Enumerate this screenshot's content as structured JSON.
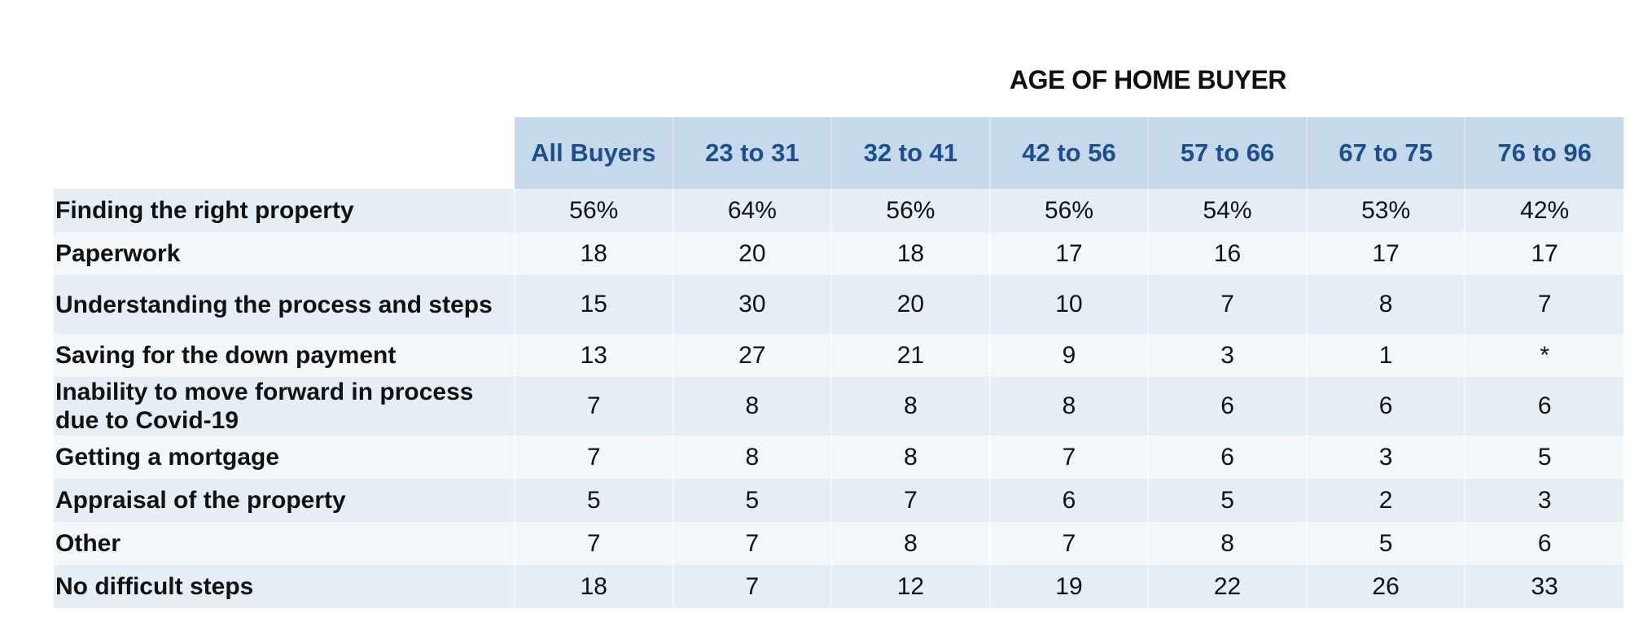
{
  "table": {
    "caption": "AGE OF HOME BUYER",
    "columns": [
      "All Buyers",
      "23 to 31",
      "32 to 41",
      "42 to 56",
      "57 to 66",
      "67 to 75",
      "76 to 96"
    ],
    "rows": [
      {
        "label": "Finding the right property",
        "values": [
          "56%",
          "64%",
          "56%",
          "56%",
          "54%",
          "53%",
          "42%"
        ]
      },
      {
        "label": "Paperwork",
        "values": [
          "18",
          "20",
          "18",
          "17",
          "16",
          "17",
          "17"
        ]
      },
      {
        "label": "Understanding the process and steps",
        "values": [
          "15",
          "30",
          "20",
          "10",
          "7",
          "8",
          "7"
        ]
      },
      {
        "label": "Saving for the down payment",
        "values": [
          "13",
          "27",
          "21",
          "9",
          "3",
          "1",
          "*"
        ]
      },
      {
        "label": "Inability to move forward in process due to Covid-19",
        "values": [
          "7",
          "8",
          "8",
          "8",
          "6",
          "6",
          "6"
        ]
      },
      {
        "label": "Getting a mortgage",
        "values": [
          "7",
          "8",
          "8",
          "7",
          "6",
          "3",
          "5"
        ]
      },
      {
        "label": "Appraisal of the property",
        "values": [
          "5",
          "5",
          "7",
          "6",
          "5",
          "2",
          "3"
        ]
      },
      {
        "label": "Other",
        "values": [
          "7",
          "7",
          "8",
          "7",
          "8",
          "5",
          "6"
        ]
      },
      {
        "label": "No difficult steps",
        "values": [
          "18",
          "7",
          "12",
          "19",
          "22",
          "26",
          "33"
        ]
      }
    ]
  }
}
